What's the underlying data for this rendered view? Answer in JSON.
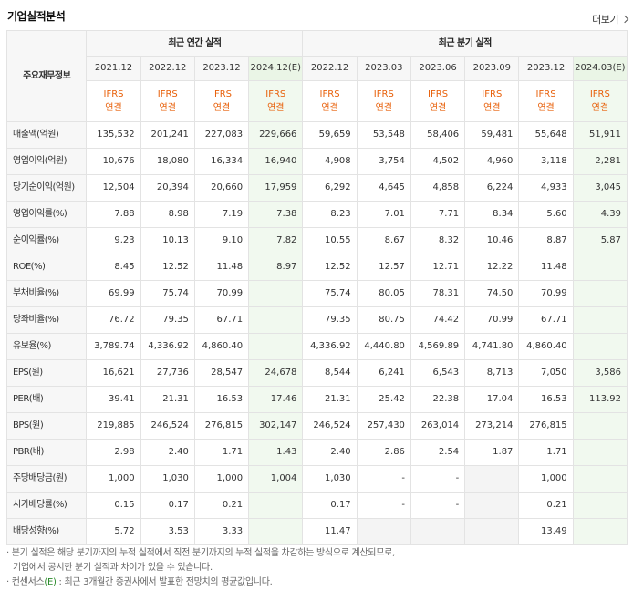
{
  "title": "기업실적분석",
  "more_label": "더보기",
  "header": {
    "label": "주요재무정보",
    "group_annual": "최근 연간 실적",
    "group_quarter": "최근 분기 실적",
    "annual_dates": [
      "2021.12",
      "2022.12",
      "2023.12",
      "2024.12(E)"
    ],
    "quarter_dates": [
      "2022.12",
      "2023.03",
      "2023.06",
      "2023.09",
      "2023.12",
      "2024.03(E)"
    ],
    "ifrs_line1": "IFRS",
    "ifrs_line2": "연결"
  },
  "rows": [
    {
      "label": "매출액(억원)",
      "values": [
        "135,532",
        "201,241",
        "227,083",
        "229,666",
        "59,659",
        "53,548",
        "58,406",
        "59,481",
        "55,648",
        "51,911"
      ]
    },
    {
      "label": "영업이익(억원)",
      "values": [
        "10,676",
        "18,080",
        "16,334",
        "16,940",
        "4,908",
        "3,754",
        "4,502",
        "4,960",
        "3,118",
        "2,281"
      ]
    },
    {
      "label": "당기순이익(억원)",
      "values": [
        "12,504",
        "20,394",
        "20,660",
        "17,959",
        "6,292",
        "4,645",
        "4,858",
        "6,224",
        "4,933",
        "3,045"
      ]
    },
    {
      "label": "영업이익률(%)",
      "values": [
        "7.88",
        "8.98",
        "7.19",
        "7.38",
        "8.23",
        "7.01",
        "7.71",
        "8.34",
        "5.60",
        "4.39"
      ]
    },
    {
      "label": "순이익률(%)",
      "values": [
        "9.23",
        "10.13",
        "9.10",
        "7.82",
        "10.55",
        "8.67",
        "8.32",
        "10.46",
        "8.87",
        "5.87"
      ]
    },
    {
      "label": "ROE(%)",
      "values": [
        "8.45",
        "12.52",
        "11.48",
        "8.97",
        "12.52",
        "12.57",
        "12.71",
        "12.22",
        "11.48",
        ""
      ]
    },
    {
      "label": "부채비율(%)",
      "values": [
        "69.99",
        "75.74",
        "70.99",
        "",
        "75.74",
        "80.05",
        "78.31",
        "74.50",
        "70.99",
        ""
      ]
    },
    {
      "label": "당좌비율(%)",
      "values": [
        "76.72",
        "79.35",
        "67.71",
        "",
        "79.35",
        "80.75",
        "74.42",
        "70.99",
        "67.71",
        ""
      ]
    },
    {
      "label": "유보율(%)",
      "values": [
        "3,789.74",
        "4,336.92",
        "4,860.40",
        "",
        "4,336.92",
        "4,440.80",
        "4,569.89",
        "4,741.80",
        "4,860.40",
        ""
      ]
    },
    {
      "label": "EPS(원)",
      "values": [
        "16,621",
        "27,736",
        "28,547",
        "24,678",
        "8,544",
        "6,241",
        "6,543",
        "8,713",
        "7,050",
        "3,586"
      ]
    },
    {
      "label": "PER(배)",
      "values": [
        "39.41",
        "21.31",
        "16.53",
        "17.46",
        "21.31",
        "25.42",
        "22.38",
        "17.04",
        "16.53",
        "113.92"
      ]
    },
    {
      "label": "BPS(원)",
      "values": [
        "219,885",
        "246,524",
        "276,815",
        "302,147",
        "246,524",
        "257,430",
        "263,014",
        "273,214",
        "276,815",
        ""
      ]
    },
    {
      "label": "PBR(배)",
      "values": [
        "2.98",
        "2.40",
        "1.71",
        "1.43",
        "2.40",
        "2.86",
        "2.54",
        "1.87",
        "1.71",
        ""
      ]
    },
    {
      "label": "주당배당금(원)",
      "values": [
        "1,000",
        "1,030",
        "1,000",
        "1,004",
        "1,030",
        "-",
        "-",
        "",
        "1,000",
        ""
      ]
    },
    {
      "label": "시가배당률(%)",
      "values": [
        "0.15",
        "0.17",
        "0.21",
        "",
        "0.17",
        "-",
        "-",
        "",
        "0.21",
        ""
      ]
    },
    {
      "label": "배당성향(%)",
      "values": [
        "5.72",
        "3.53",
        "3.33",
        "",
        "11.47",
        "",
        "",
        "",
        "13.49",
        ""
      ]
    }
  ],
  "notes": {
    "line1": "분기 실적은 해당 분기까지의 누적 실적에서 직전 분기까지의 누적 실적을 차감하는 방식으로 계산되므로,",
    "line2": "기업에서 공시한 분기 실적과 차이가 있을 수 있습니다.",
    "line3_prefix": "컨센서스",
    "line3_mark": "(E)",
    "line3_suffix": ": 최근 3개월간 증권사에서 발표한 전망치의 평균값입니다."
  },
  "colors": {
    "ifrs_orange": "#e8600a",
    "estimate_bg": "#f1f9ef",
    "estimate_mark_green": "#2a8a2a"
  }
}
